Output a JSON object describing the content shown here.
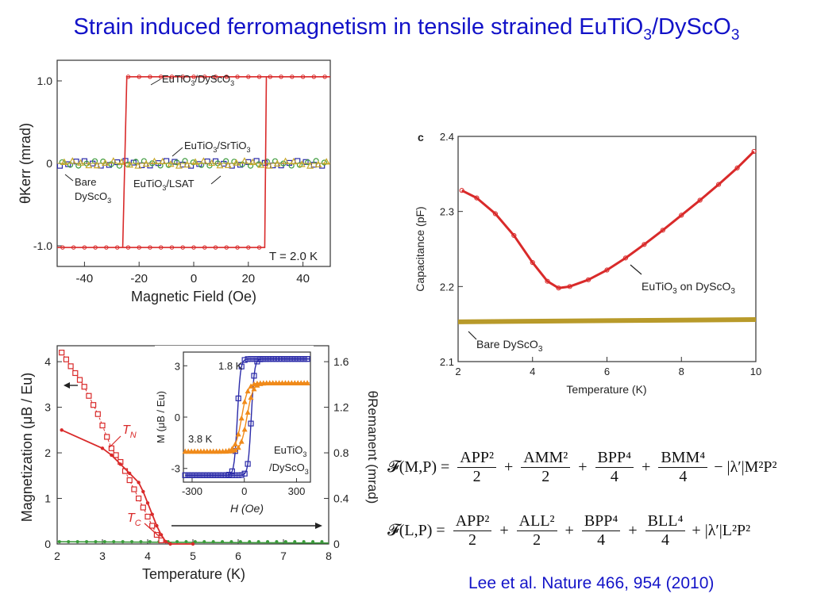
{
  "slide": {
    "title_parts": [
      "Strain induced ferromagnetism in tensile strained EuTiO",
      "3",
      "/DyScO",
      "3"
    ],
    "citation": "Lee et al. Nature 466, 954 (2010)"
  },
  "chart_data": [
    {
      "id": "kerr",
      "type": "line",
      "xlabel": "Magnetic Field (Oe)",
      "ylabel": "θKerr (mrad)",
      "xlim": [
        -50,
        50
      ],
      "ylim": [
        -1.25,
        1.25
      ],
      "xticks": [
        -40,
        -20,
        0,
        20,
        40
      ],
      "yticks": [
        {
          "value": 1.0,
          "label": "1.0"
        },
        {
          "value": 0,
          "label": "0"
        },
        {
          "value": -1.0,
          "label": "-1.0"
        }
      ],
      "annotation": "T = 2.0 K",
      "series": [
        {
          "name": "EuTiO3/DyScO3",
          "color": "#d92a2a",
          "loop": {
            "coercive_field": 26,
            "saturation": 1.05,
            "negative_saturation": -1.02
          }
        },
        {
          "name": "EuTiO3/SrTiO3",
          "color": "#2a2aa8",
          "values": 0.0
        },
        {
          "name": "EuTiO3/LSAT",
          "color": "#3a9a3a",
          "values": 0.0
        },
        {
          "name": "Bare DyScO3",
          "color": "#c8a82a",
          "values": 0.0
        }
      ],
      "labels": {
        "s1a": "EuTiO",
        "s1b": "3",
        "s1c": "/DyScO",
        "s1d": "3",
        "s2a": "EuTiO",
        "s2b": "3",
        "s2c": "/SrTiO",
        "s2d": "3",
        "s3a": "EuTiO",
        "s3b": "3",
        "s3c": "/LSAT",
        "s4a": "Bare",
        "s4b": "DyScO",
        "s4c": "3"
      }
    },
    {
      "id": "magnetization",
      "type": "line",
      "xlabel": "Temperature (K)",
      "ylabel": "Magnetization (μB / Eu)",
      "y2label": "θRemanent (mrad)",
      "xlim": [
        2,
        8
      ],
      "ylim": [
        0,
        4.35
      ],
      "y2lim": [
        0,
        1.74
      ],
      "xticks": [
        2,
        3,
        4,
        5,
        6,
        7,
        8
      ],
      "yticks": [
        0,
        1,
        2,
        3,
        4
      ],
      "y2ticks": [
        {
          "value": 0,
          "label": "0"
        },
        {
          "value": 0.4,
          "label": "0.4"
        },
        {
          "value": 0.8,
          "label": "0.8"
        },
        {
          "value": 1.2,
          "label": "1.2"
        },
        {
          "value": 1.6,
          "label": "1.6"
        }
      ],
      "series": [
        {
          "name": "M(T) squares",
          "color": "#d92a2a",
          "x": [
            2.1,
            2.2,
            2.3,
            2.4,
            2.5,
            2.6,
            2.7,
            2.8,
            2.9,
            3.0,
            3.1,
            3.2,
            3.3,
            3.4,
            3.5,
            3.6,
            3.7,
            3.8,
            3.9,
            4.0,
            4.1,
            4.2,
            4.3
          ],
          "y": [
            4.2,
            4.05,
            3.9,
            3.75,
            3.6,
            3.45,
            3.25,
            3.05,
            2.85,
            2.6,
            2.35,
            2.1,
            1.95,
            1.8,
            1.6,
            1.4,
            1.2,
            1.0,
            0.8,
            0.6,
            0.4,
            0.2,
            0.08
          ]
        },
        {
          "name": "Remanent Kerr",
          "color": "#d92a2a",
          "x": [
            2.1,
            3.0,
            3.2,
            3.4,
            3.6,
            3.8,
            3.9,
            4.0,
            4.1,
            4.2,
            4.3,
            4.4,
            4.5,
            5.0
          ],
          "y": [
            2.5,
            2.1,
            1.95,
            1.75,
            1.55,
            1.35,
            1.15,
            0.9,
            0.65,
            0.4,
            0.2,
            0.05,
            0.0,
            0.0
          ]
        },
        {
          "name": "baseline",
          "color": "#3a9a3a",
          "x": [
            2.0,
            8.0
          ],
          "y": [
            0.05,
            0.02
          ]
        }
      ],
      "labels": {
        "tn": "T",
        "tn_sub": "N",
        "tc": "T",
        "tc_sub": "C"
      }
    },
    {
      "id": "inset",
      "type": "line",
      "xlabel": "H (Oe)",
      "ylabel": "M (μB / Eu)",
      "xlim": [
        -350,
        380
      ],
      "ylim": [
        -3.8,
        3.8
      ],
      "xticks": [
        -300,
        0,
        300
      ],
      "yticks": [
        -3,
        0,
        3
      ],
      "series": [
        {
          "name": "1.8 K",
          "color": "#2a2aa8",
          "coercive_field": 40,
          "saturation": 3.4
        },
        {
          "name": "3.8 K",
          "color": "#f08a1a",
          "coercive_field": 15,
          "saturation": 2.0
        }
      ],
      "labels": {
        "t1": "1.8 K",
        "t2": "3.8 K",
        "mat_a": "EuTiO",
        "mat_b": "3",
        "mat_c": "/DyScO",
        "mat_d": "3"
      }
    },
    {
      "id": "capacitance",
      "type": "line",
      "panel_label": "c",
      "xlabel": "Temperature (K)",
      "ylabel": "Capacitance (pF)",
      "xlim": [
        2,
        10
      ],
      "ylim": [
        2.1,
        2.4
      ],
      "xticks": [
        2,
        4,
        6,
        8,
        10
      ],
      "yticks": [
        {
          "value": 2.1,
          "label": "2.1"
        },
        {
          "value": 2.2,
          "label": "2.2"
        },
        {
          "value": 2.3,
          "label": "2.3"
        },
        {
          "value": 2.4,
          "label": "2.4"
        }
      ],
      "series": [
        {
          "name": "EuTiO3 on DyScO3",
          "color": "#d92a2a",
          "x": [
            2.1,
            2.5,
            3.0,
            3.5,
            4.0,
            4.4,
            4.7,
            5.0,
            5.5,
            6.0,
            6.5,
            7.0,
            7.5,
            8.0,
            8.5,
            9.0,
            9.5,
            9.95
          ],
          "y": [
            2.328,
            2.318,
            2.297,
            2.268,
            2.232,
            2.207,
            2.198,
            2.2,
            2.209,
            2.222,
            2.238,
            2.256,
            2.275,
            2.295,
            2.315,
            2.336,
            2.358,
            2.38
          ]
        },
        {
          "name": "Bare DyScO3",
          "color": "#b89a2a",
          "x": [
            2.0,
            10.0
          ],
          "y": [
            2.153,
            2.156
          ]
        }
      ],
      "labels": {
        "l1a": "EuTiO",
        "l1b": "3",
        "l1c": " on DyScO",
        "l1d": "3",
        "l2a": "Bare DyScO",
        "l2b": "3"
      }
    }
  ],
  "equations": [
    {
      "lhs": "𝓕(M,P) =",
      "terms": [
        {
          "op": "",
          "num": "APP²",
          "den": "2"
        },
        {
          "op": "+",
          "num": "AMM²",
          "den": "2"
        },
        {
          "op": "+",
          "num": "BPP⁴",
          "den": "4"
        },
        {
          "op": "+",
          "num": "BMM⁴",
          "den": "4"
        }
      ],
      "tail": "− |λ′|M²P²"
    },
    {
      "lhs": "𝓕(L,P) =",
      "terms": [
        {
          "op": "",
          "num": "APP²",
          "den": "2"
        },
        {
          "op": "+",
          "num": "ALL²",
          "den": "2"
        },
        {
          "op": "+",
          "num": "BPP⁴",
          "den": "4"
        },
        {
          "op": "+",
          "num": "BLL⁴",
          "den": "4"
        }
      ],
      "tail": "+ |λ′|L²P²"
    }
  ]
}
